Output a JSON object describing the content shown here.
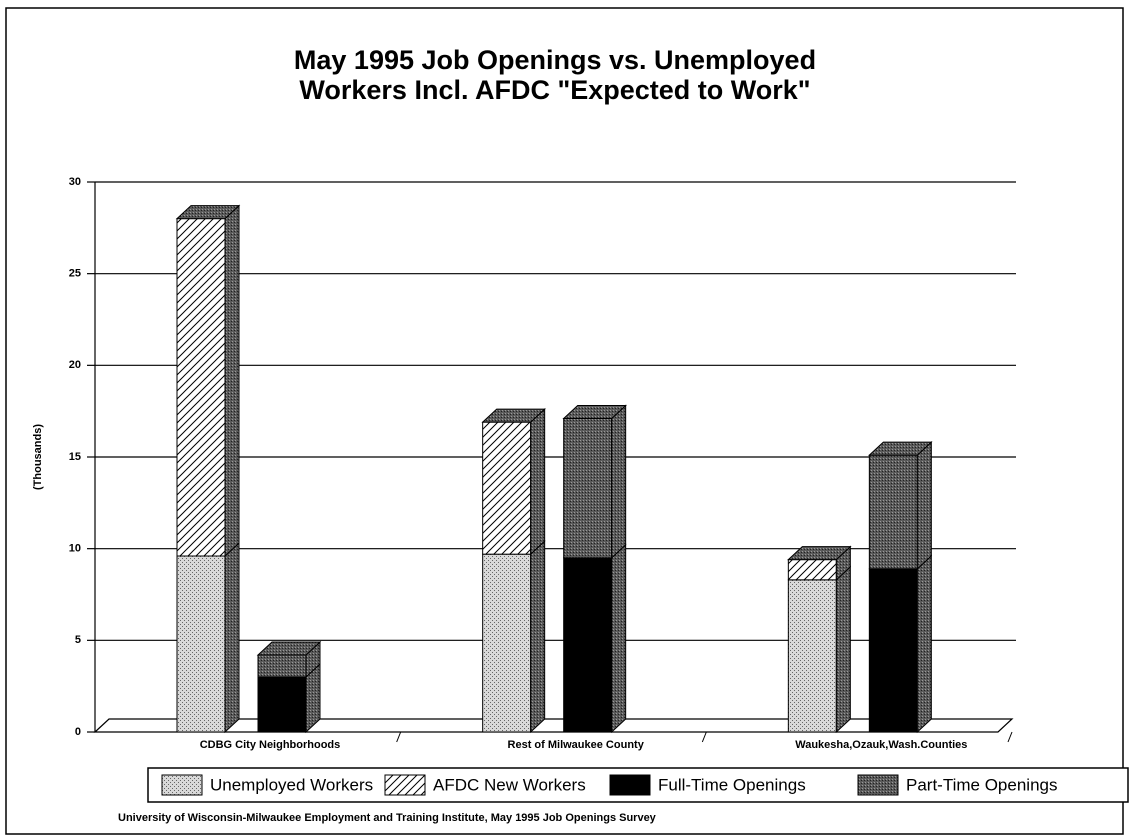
{
  "chart_data": {
    "type": "bar",
    "title": [
      "May 1995 Job Openings vs. Unemployed",
      "Workers Incl. AFDC \"Expected to Work\""
    ],
    "ylabel": "(Thousands)",
    "source": "University of Wisconsin-Milwaukee Employment and Training Institute, May 1995 Job Openings Survey",
    "categories": [
      "CDBG City Neighborhoods",
      "Rest of Milwaukee County",
      "Waukesha,Ozauk,Wash.Counties"
    ],
    "series": [
      {
        "name": "Unemployed Workers",
        "color": "#d9d9d9",
        "values": [
          9.6,
          9.7,
          8.3
        ]
      },
      {
        "name": "AFDC New Workers",
        "color": "#ffffff",
        "values": [
          18.4,
          7.2,
          1.1
        ]
      },
      {
        "name": "Full-Time Openings",
        "color": "#000000",
        "values": [
          3.0,
          9.5,
          8.9
        ]
      },
      {
        "name": "Part-Time Openings",
        "color": "#5a5a5a",
        "values": [
          1.2,
          7.6,
          6.2
        ]
      }
    ],
    "ylim": [
      0,
      30
    ],
    "yticks": [
      0,
      5,
      10,
      15,
      20,
      25,
      30
    ],
    "grid": true
  }
}
